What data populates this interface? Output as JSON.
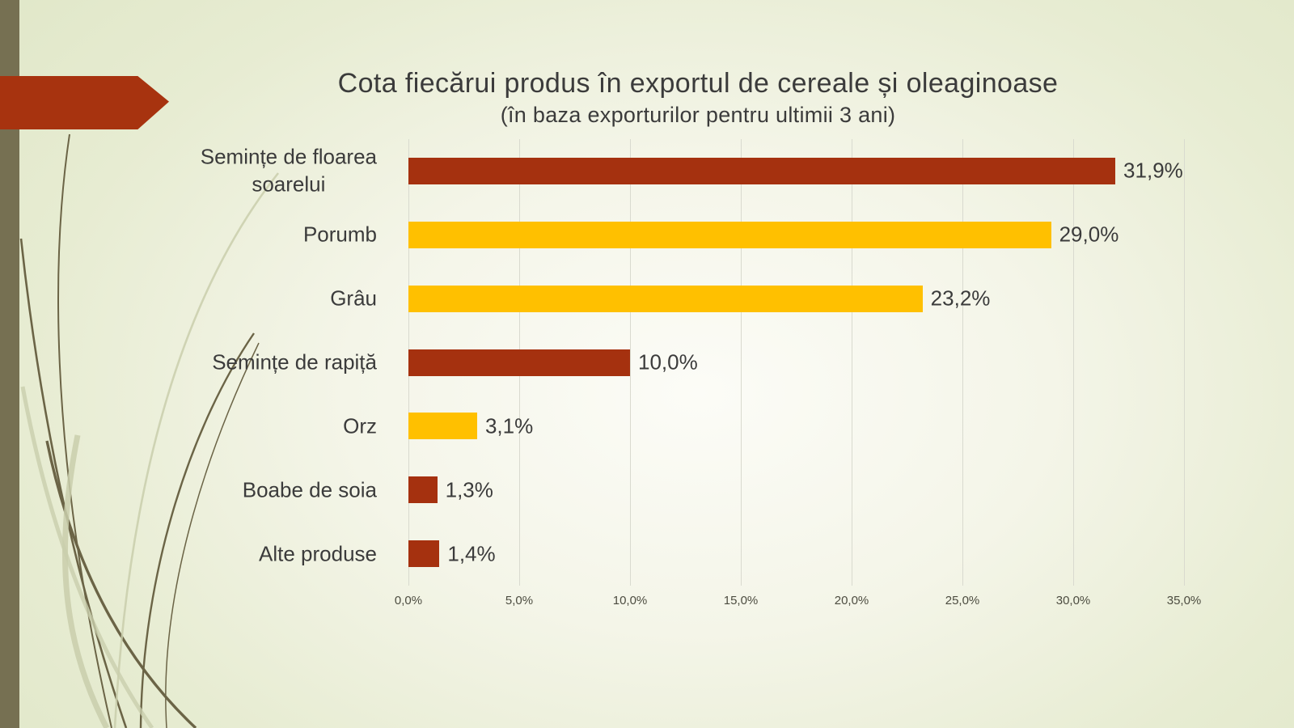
{
  "theme": {
    "background_green": "#E0E7C8",
    "background_center": "#FCFCF7",
    "left_band_olive": "#767052",
    "arrow_red": "#A7330F",
    "bar_dark_red": "#A5310F",
    "bar_gold": "#FFC000",
    "gridline_gray": "#D9DACF",
    "text_dark": "#3B3B3B",
    "tick_text": "#4C4C40",
    "grass_dark": "#6B6446",
    "grass_pale": "#C9CEAC"
  },
  "chart_data": {
    "type": "bar",
    "orientation": "horizontal",
    "title": "Cota fiecărui produs în exportul de cereale și oleaginoase",
    "subtitle": "(în baza exporturilor pentru ultimii 3 ani)",
    "categories": [
      "Semințe de floarea soarelui",
      "Porumb",
      "Grâu",
      "Semințe de rapiță",
      "Orz",
      "Boabe de soia",
      "Alte produse"
    ],
    "category_lines": [
      [
        "Semințe de floarea",
        "soarelui"
      ],
      [
        "Porumb"
      ],
      [
        "Grâu"
      ],
      [
        "Semințe de rapiță"
      ],
      [
        "Orz"
      ],
      [
        "Boabe de soia"
      ],
      [
        "Alte produse"
      ]
    ],
    "values": [
      31.9,
      29.0,
      23.2,
      10.0,
      3.1,
      1.3,
      1.4
    ],
    "value_labels": [
      "31,9%",
      "29,0%",
      "23,2%",
      "10,0%",
      "3,1%",
      "1,3%",
      "1,4%"
    ],
    "bar_colors": [
      "#A5310F",
      "#FFC000",
      "#FFC000",
      "#A5310F",
      "#FFC000",
      "#A5310F",
      "#A5310F"
    ],
    "x_ticks": [
      "0,0%",
      "5,0%",
      "10,0%",
      "15,0%",
      "20,0%",
      "25,0%",
      "30,0%",
      "35,0%"
    ],
    "xlim": [
      0,
      35
    ],
    "grid": true,
    "legend": false
  }
}
